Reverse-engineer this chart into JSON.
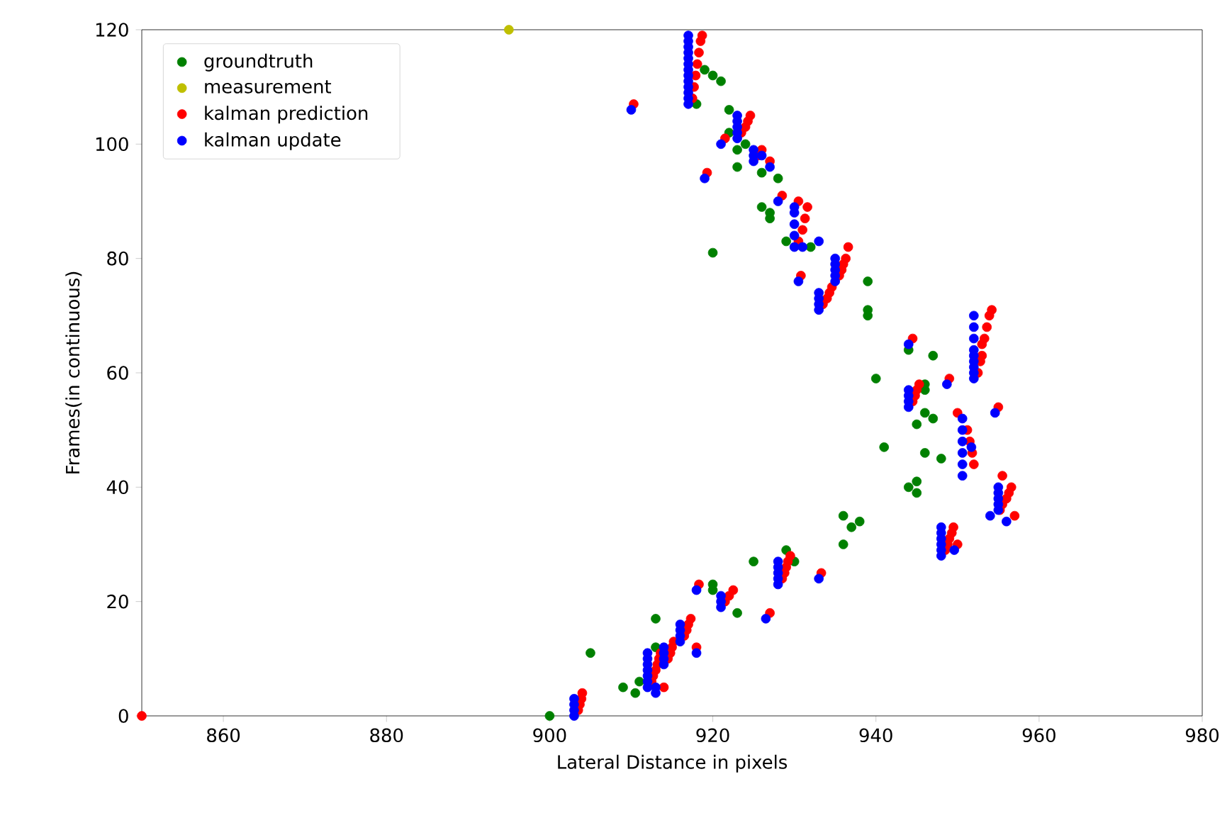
{
  "chart_data": {
    "type": "scatter",
    "xlabel": "Lateral Distance in pixels",
    "ylabel": "Frames(in continuous)",
    "xlim": [
      850,
      980
    ],
    "ylim": [
      0,
      120
    ],
    "xticks": [
      860,
      880,
      900,
      920,
      940,
      960,
      980
    ],
    "yticks": [
      0,
      20,
      40,
      60,
      80,
      100,
      120
    ],
    "legend": "top left",
    "marker": "circle",
    "grid": false,
    "series": [
      {
        "name": "groundtruth",
        "color": "#008000",
        "x": [
          900,
          905,
          909,
          910.5,
          911,
          913,
          913,
          915,
          920,
          920,
          923,
          925,
          929,
          930,
          936,
          936,
          937,
          938,
          939,
          939,
          939,
          940,
          941,
          944,
          944,
          945,
          945,
          945,
          946,
          946,
          946,
          946,
          947,
          947,
          948,
          944,
          918,
          919,
          920,
          921,
          920,
          922,
          922,
          923,
          923,
          924,
          925,
          926,
          926,
          927,
          927,
          928,
          929,
          931,
          932
        ],
        "values": [
          0,
          11,
          5,
          4,
          6,
          17,
          12,
          null,
          23,
          22,
          18,
          27,
          29,
          27,
          35,
          30,
          33,
          34,
          70,
          71,
          76,
          59,
          47,
          40,
          64,
          51,
          41,
          39,
          57,
          58,
          46,
          53,
          52,
          63,
          45,
          null,
          107,
          113,
          112,
          111,
          81,
          102,
          106,
          96,
          99,
          100,
          null,
          89,
          95,
          88,
          87,
          94,
          83,
          null,
          82
        ]
      },
      {
        "name": "measurement",
        "color": "#bfbf00",
        "x": [
          895
        ],
        "values": [
          120
        ]
      },
      {
        "name": "kalman prediction",
        "color": "#ff0000",
        "x": [
          850,
          903.5,
          903.7,
          903.9,
          904,
          912.5,
          912.7,
          913,
          913.2,
          913.4,
          913.6,
          914,
          914.5,
          914.8,
          915,
          915.2,
          916.5,
          916.8,
          917,
          917.3,
          918,
          918.3,
          921.5,
          922,
          922.5,
          927,
          928.5,
          928.8,
          929,
          929.2,
          929.5,
          933.3,
          933.5,
          934,
          934.3,
          934.6,
          935.5,
          935.8,
          936,
          936.3,
          936.6,
          930.8,
          930.5,
          931,
          931.3,
          931.6,
          930.5,
          928.5,
          919.3,
          921.5,
          923.5,
          924,
          924.3,
          924.6,
          925.5,
          926,
          927,
          917.5,
          917.7,
          917.9,
          918.1,
          918.3,
          918.5,
          918.7,
          910.3,
          944.5,
          944.8,
          945,
          945.3,
          944.5,
          948.5,
          948.8,
          949,
          949.3,
          949.5,
          950,
          949,
          950,
          951.2,
          951.5,
          951.8,
          952,
          952.5,
          952.8,
          953,
          953,
          953.3,
          953.6,
          953.9,
          954.2,
          955,
          955.2,
          955.5,
          956,
          956.3,
          956.6,
          957,
          955.5
        ],
        "values": [
          0,
          1,
          2,
          3,
          4,
          6,
          7,
          8,
          9,
          10,
          11,
          5,
          10,
          11,
          12,
          13,
          14,
          15,
          16,
          17,
          12,
          23,
          20,
          21,
          22,
          18,
          24,
          25,
          26,
          27,
          28,
          25,
          72,
          73,
          74,
          75,
          77,
          78,
          79,
          80,
          82,
          77,
          83,
          85,
          87,
          89,
          90,
          91,
          95,
          101,
          102,
          103,
          104,
          105,
          98,
          99,
          97,
          108,
          110,
          112,
          114,
          116,
          118,
          119,
          107,
          55,
          56,
          57,
          58,
          66,
          29,
          30,
          31,
          32,
          33,
          30,
          59,
          53,
          50,
          48,
          46,
          44,
          60,
          62,
          63,
          65,
          66,
          68,
          70,
          71,
          54,
          36,
          37,
          38,
          39,
          40,
          35,
          42
        ]
      },
      {
        "name": "kalman update",
        "color": "#0000ff",
        "x": [
          903,
          903,
          903,
          903,
          912,
          912,
          912,
          912,
          912,
          912,
          912,
          913,
          913,
          914,
          914,
          914,
          914,
          916,
          916,
          916,
          916,
          918,
          918,
          921,
          921,
          921,
          926.5,
          928,
          928,
          928,
          928,
          928,
          933,
          933,
          933,
          933,
          933,
          935,
          935,
          935,
          935,
          935,
          930.5,
          930,
          930,
          930,
          930,
          930,
          931,
          933,
          928,
          919,
          921,
          923,
          923,
          923,
          923,
          923,
          925,
          925,
          925,
          926,
          927,
          917,
          917,
          917,
          917,
          917,
          917,
          917,
          917,
          917,
          917,
          917,
          917,
          917,
          910,
          944,
          944,
          944,
          944,
          944,
          948,
          948,
          948,
          948,
          948,
          948,
          949.6,
          948.7,
          950.6,
          950.6,
          950.6,
          950.6,
          950.6,
          950.6,
          951.7,
          952,
          952,
          952,
          952,
          952,
          952,
          952,
          952,
          952,
          954.6,
          954,
          955,
          955,
          955,
          955,
          955,
          956
        ],
        "values": [
          0,
          1,
          2,
          3,
          5,
          6,
          7,
          8,
          9,
          10,
          11,
          4,
          5,
          9,
          10,
          11,
          12,
          13,
          14,
          15,
          16,
          11,
          22,
          19,
          20,
          21,
          17,
          23,
          24,
          25,
          26,
          27,
          24,
          71,
          72,
          73,
          74,
          76,
          77,
          78,
          79,
          80,
          76,
          82,
          84,
          86,
          88,
          89,
          82,
          83,
          90,
          94,
          100,
          101,
          102,
          103,
          104,
          105,
          97,
          98,
          99,
          98,
          96,
          107,
          108,
          109,
          110,
          111,
          112,
          113,
          114,
          115,
          116,
          117,
          118,
          119,
          106,
          54,
          55,
          56,
          57,
          65,
          28,
          29,
          30,
          31,
          32,
          33,
          29,
          58,
          42,
          44,
          46,
          48,
          50,
          52,
          47,
          59,
          60,
          61,
          62,
          63,
          64,
          66,
          68,
          70,
          53,
          35,
          36,
          37,
          38,
          39,
          40,
          34
        ]
      }
    ]
  }
}
